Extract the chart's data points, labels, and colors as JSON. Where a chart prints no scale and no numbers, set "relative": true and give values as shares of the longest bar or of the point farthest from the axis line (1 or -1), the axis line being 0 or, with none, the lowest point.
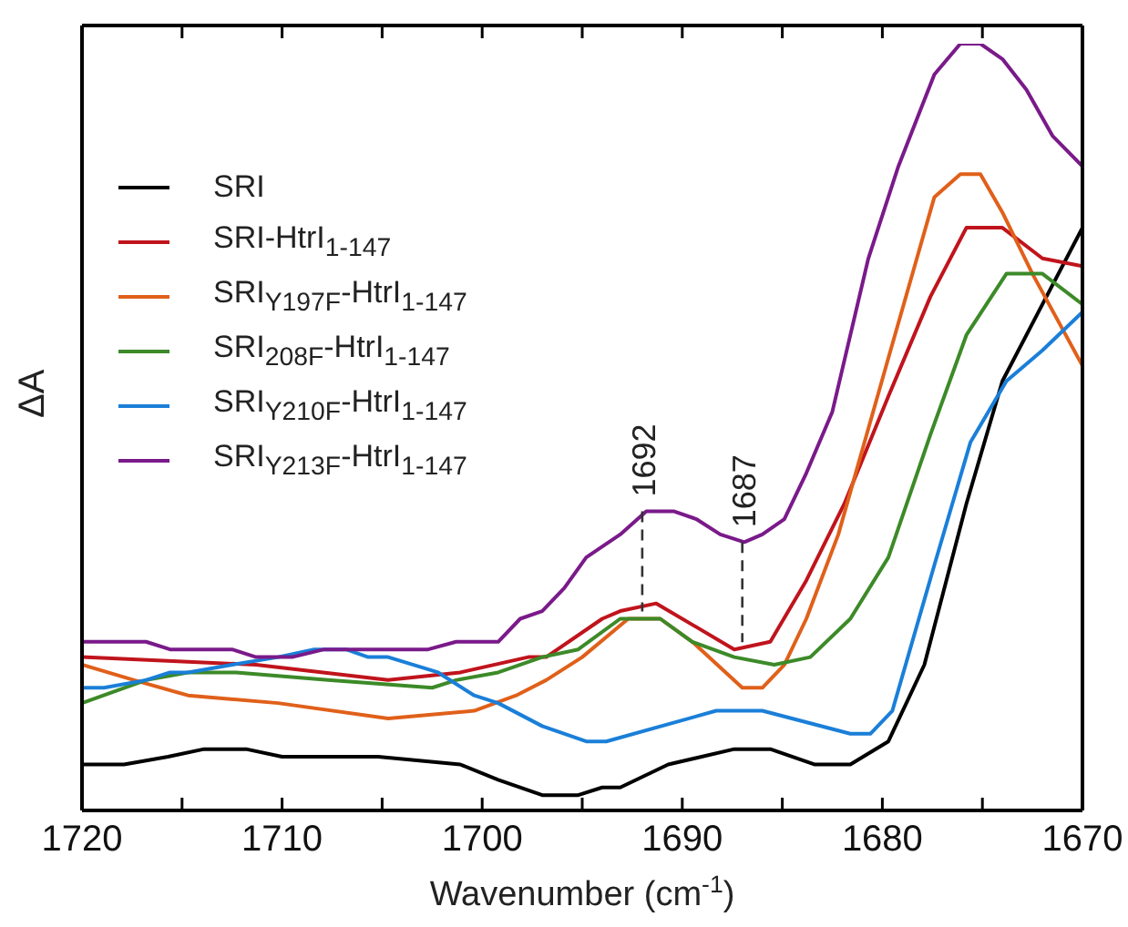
{
  "chart_data": {
    "type": "line",
    "relative": true,
    "xlabel": "Wavenumber (cm$^{-1}$)",
    "ylabel": "ΔA",
    "xlim": [
      1720,
      1670
    ],
    "xticks": [
      1720,
      {
        "value": 1715,
        "label": null
      },
      1710,
      {
        "value": 1705,
        "label": null
      },
      1700,
      {
        "value": 1695,
        "label": null
      },
      1690,
      {
        "value": 1685,
        "label": null
      },
      1680,
      {
        "value": 1675,
        "label": null
      },
      1670
    ],
    "legend": "top left",
    "line_style": "solid",
    "marker": "none",
    "annotations": [
      {
        "text": "1692",
        "x": 1692,
        "y": 0.39
      },
      {
        "text": "1687",
        "x": 1687,
        "y": 0.35
      }
    ],
    "series": [
      {
        "name": "SRI",
        "color": "#000000",
        "x": [
          1720,
          1717.9,
          1715.7,
          1713.9,
          1711.8,
          1710,
          1705.2,
          1701.1,
          1699.2,
          1697,
          1695.2,
          1694,
          1693.1,
          1690.7,
          1687.4,
          1685.6,
          1683.4,
          1681.6,
          1679.7,
          1677.9,
          1675.8,
          1674,
          1672.2,
          1670
        ],
        "values": [
          0.06,
          0.06,
          0.07,
          0.08,
          0.08,
          0.07,
          0.07,
          0.06,
          0.04,
          0.02,
          0.02,
          0.03,
          0.03,
          0.06,
          0.08,
          0.08,
          0.06,
          0.06,
          0.09,
          0.19,
          0.4,
          0.56,
          0.65,
          0.76
        ]
      },
      {
        "name": "SRI-HtrI$_{1-147}$",
        "color": "#c0141c",
        "x": [
          1720,
          1711.3,
          1704.7,
          1701.1,
          1697.7,
          1696.8,
          1694,
          1693.1,
          1691.3,
          1687.4,
          1685.6,
          1683.8,
          1681.9,
          1679.7,
          1677.6,
          1675.8,
          1674,
          1672,
          1670
        ],
        "values": [
          0.2,
          0.19,
          0.17,
          0.18,
          0.2,
          0.2,
          0.25,
          0.26,
          0.27,
          0.21,
          0.22,
          0.3,
          0.4,
          0.54,
          0.67,
          0.76,
          0.76,
          0.72,
          0.71
        ]
      },
      {
        "name": "SRI$_{Y197F}$-HtrI$_{1-147}$",
        "color": "#e0601a",
        "x": [
          1720,
          1717.4,
          1714.7,
          1710.2,
          1704.7,
          1700.4,
          1698.3,
          1696.8,
          1695,
          1692.7,
          1691.1,
          1689.5,
          1687,
          1686,
          1684.9,
          1683.8,
          1682.2,
          1679.7,
          1677.4,
          1676.1,
          1675.1,
          1674,
          1672.5,
          1670
        ],
        "values": [
          0.19,
          0.17,
          0.15,
          0.14,
          0.12,
          0.13,
          0.15,
          0.17,
          0.2,
          0.25,
          0.25,
          0.22,
          0.16,
          0.16,
          0.19,
          0.25,
          0.36,
          0.59,
          0.8,
          0.83,
          0.83,
          0.78,
          0.7,
          0.58
        ]
      },
      {
        "name": "SRI$_{208F}$-HtrI$_{1-147}$",
        "color": "#3c8a28",
        "x": [
          1720,
          1716.8,
          1714.7,
          1712.3,
          1707.7,
          1702.5,
          1701.3,
          1699.2,
          1697,
          1695.2,
          1693.1,
          1691.1,
          1689.5,
          1687.4,
          1685.4,
          1683.6,
          1681.6,
          1679.7,
          1677.6,
          1675.8,
          1673.8,
          1672,
          1670
        ],
        "values": [
          0.14,
          0.17,
          0.18,
          0.18,
          0.17,
          0.16,
          0.17,
          0.18,
          0.2,
          0.21,
          0.25,
          0.25,
          0.22,
          0.2,
          0.19,
          0.2,
          0.25,
          0.33,
          0.49,
          0.62,
          0.7,
          0.7,
          0.66
        ]
      },
      {
        "name": "SRI$_{Y210F}$-HtrI$_{1-147}$",
        "color": "#1a7fd8",
        "x": [
          1720,
          1718.9,
          1716.8,
          1715.6,
          1714.7,
          1712.5,
          1710.2,
          1708.4,
          1706.8,
          1705.7,
          1704.7,
          1702.2,
          1700.4,
          1699.2,
          1697,
          1694.8,
          1693.8,
          1688.3,
          1686,
          1681.6,
          1680.6,
          1679.5,
          1677.4,
          1675.6,
          1673.8,
          1672,
          1670
        ],
        "values": [
          0.16,
          0.16,
          0.17,
          0.18,
          0.18,
          0.19,
          0.2,
          0.21,
          0.21,
          0.2,
          0.2,
          0.18,
          0.15,
          0.14,
          0.11,
          0.09,
          0.09,
          0.13,
          0.13,
          0.1,
          0.1,
          0.13,
          0.32,
          0.48,
          0.56,
          0.6,
          0.65
        ]
      },
      {
        "name": "SRI$_{Y213F}$-HtrI$_{1-147}$",
        "color": "#7a1a8a",
        "x": [
          1720,
          1716.8,
          1715.6,
          1713.6,
          1712.5,
          1711.3,
          1709.5,
          1707.9,
          1702.7,
          1701.3,
          1699.2,
          1698.1,
          1697,
          1695.9,
          1694.8,
          1693.1,
          1691.8,
          1690.4,
          1689.3,
          1688.1,
          1686.9,
          1686,
          1684.9,
          1683.8,
          1682.5,
          1680.7,
          1679.2,
          1677.4,
          1676.1,
          1675.1,
          1674,
          1672.8,
          1671.5,
          1670
        ],
        "values": [
          0.22,
          0.22,
          0.21,
          0.21,
          0.21,
          0.2,
          0.2,
          0.21,
          0.21,
          0.22,
          0.22,
          0.25,
          0.26,
          0.29,
          0.33,
          0.36,
          0.39,
          0.39,
          0.38,
          0.36,
          0.35,
          0.36,
          0.38,
          0.44,
          0.52,
          0.72,
          0.84,
          0.96,
          1,
          1,
          0.98,
          0.94,
          0.88,
          0.84
        ]
      }
    ]
  }
}
